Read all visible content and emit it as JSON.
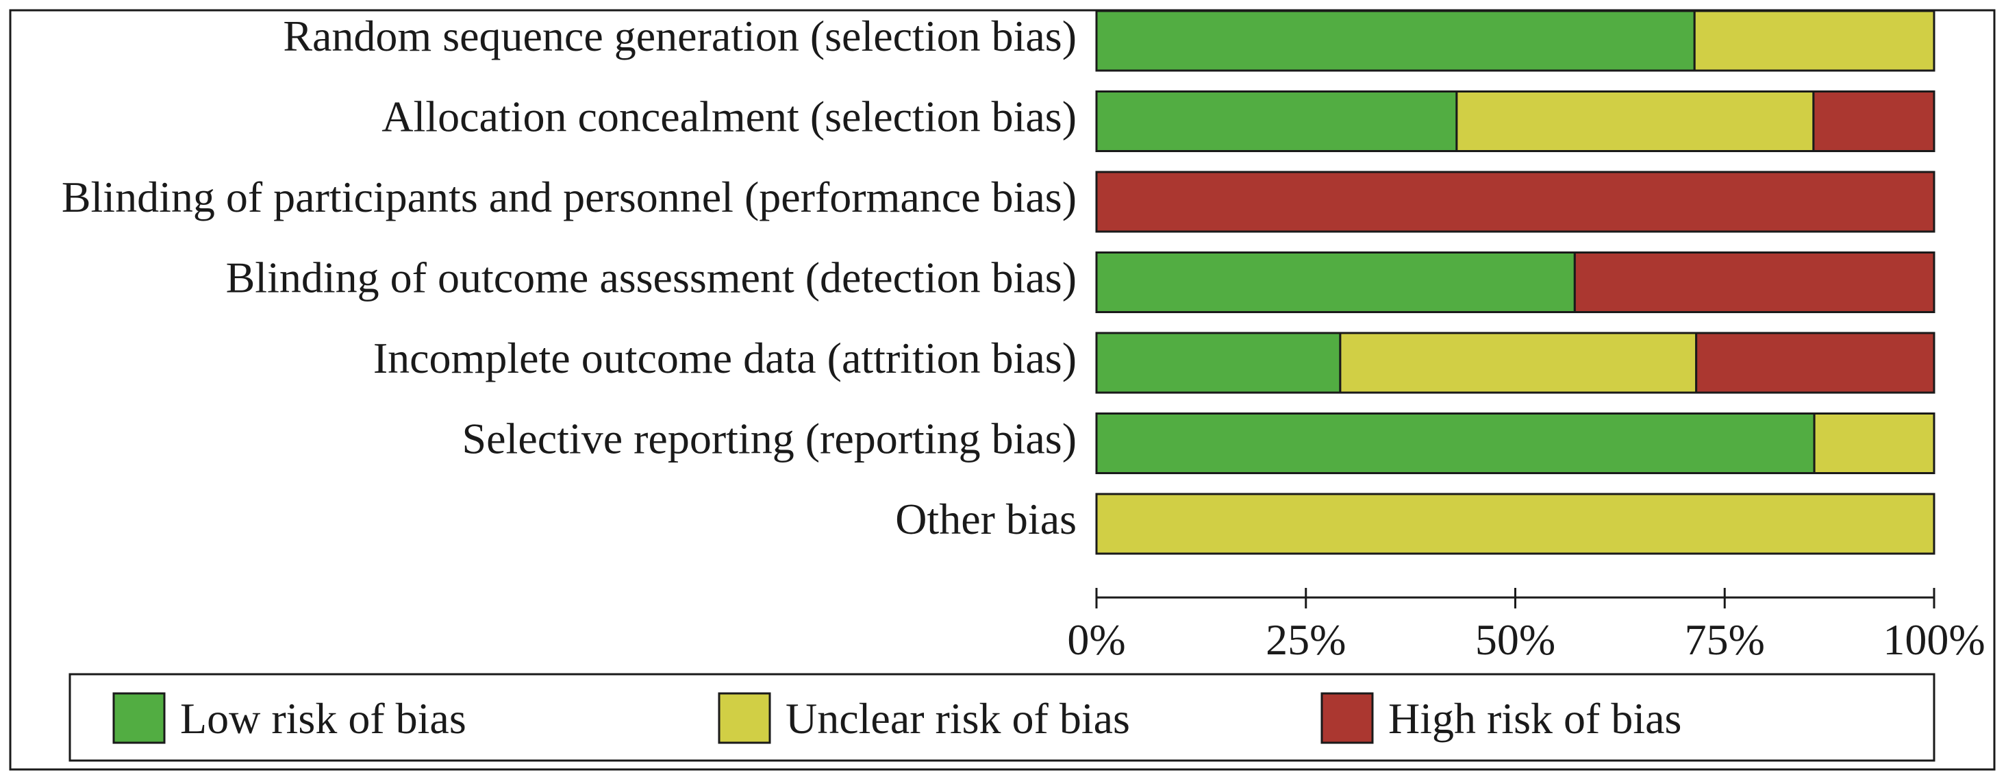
{
  "chart_data": {
    "type": "bar",
    "orientation": "horizontal",
    "stacked": true,
    "categories": [
      "Random sequence generation (selection bias)",
      "Allocation concealment (selection bias)",
      "Blinding of participants and personnel (performance bias)",
      "Blinding of outcome assessment (detection bias)",
      "Incomplete outcome data (attrition bias)",
      "Selective reporting (reporting bias)",
      "Other bias"
    ],
    "series": [
      {
        "name": "Low risk of bias",
        "color": "#52ad42",
        "values": [
          71.4,
          43.0,
          0,
          57.1,
          29.1,
          85.7,
          0
        ]
      },
      {
        "name": "Unclear risk of bias",
        "color": "#d1cf45",
        "values": [
          28.6,
          42.6,
          0,
          0,
          42.5,
          14.3,
          100
        ]
      },
      {
        "name": "High risk of bias",
        "color": "#ab3730",
        "values": [
          0,
          14.4,
          100,
          42.9,
          28.4,
          0,
          0
        ]
      }
    ],
    "x_ticks": [
      "0%",
      "25%",
      "50%",
      "75%",
      "100%"
    ],
    "xlim": [
      0,
      100
    ],
    "grid": false,
    "legend_position": "bottom"
  }
}
